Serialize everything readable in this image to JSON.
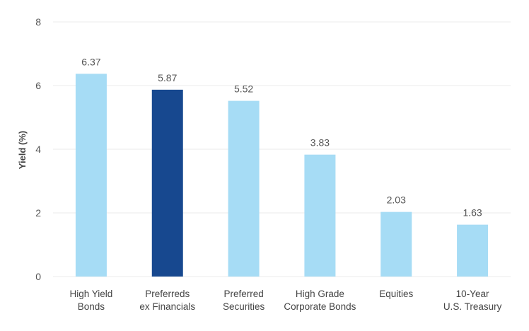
{
  "chart_data": {
    "type": "bar",
    "title": "",
    "xlabel": "",
    "ylabel": "Yield (%)",
    "ylim": [
      0,
      8
    ],
    "yticks": [
      0,
      2,
      4,
      6,
      8
    ],
    "grid": true,
    "categories": [
      [
        "High Yield",
        "Bonds"
      ],
      [
        "Preferreds",
        "ex Financials"
      ],
      [
        "Preferred",
        "Securities"
      ],
      [
        "High Grade",
        "Corporate Bonds"
      ],
      [
        "Equities"
      ],
      [
        "10-Year",
        "U.S. Treasury"
      ]
    ],
    "values": [
      6.37,
      5.87,
      5.52,
      3.83,
      2.03,
      1.63
    ],
    "value_labels": [
      "6.37",
      "5.87",
      "5.52",
      "3.83",
      "2.03",
      "1.63"
    ],
    "colors": [
      "#a6dcf5",
      "#17488f",
      "#a6dcf5",
      "#a6dcf5",
      "#a6dcf5",
      "#a6dcf5"
    ]
  }
}
